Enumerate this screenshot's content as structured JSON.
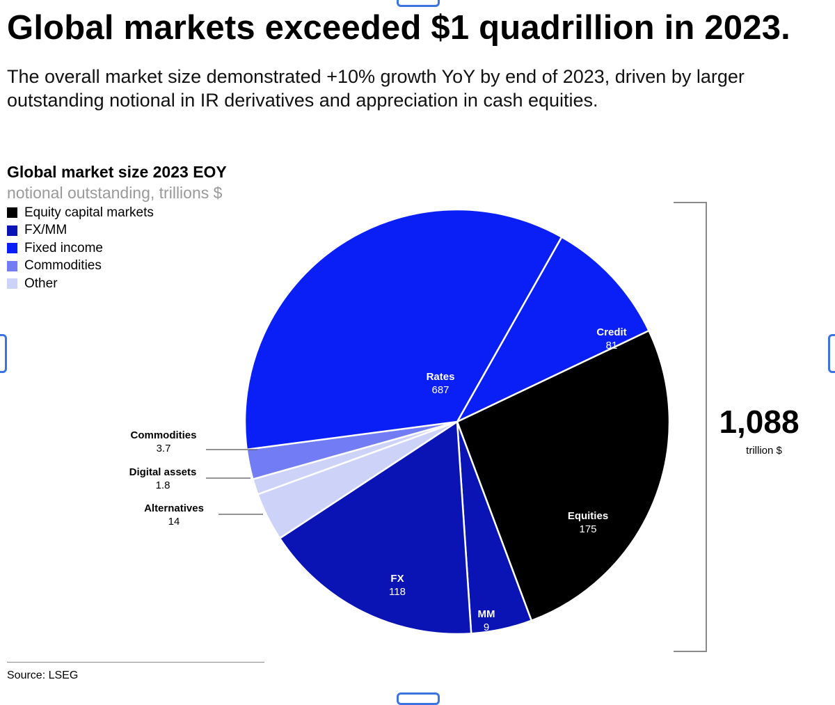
{
  "headline": "Global markets exceeded $1 quadrillion in 2023.",
  "subhead": "The overall market size demonstrated +10% growth YoY by end of 2023, driven by larger outstanding notional in IR derivatives and appreciation in cash equities.",
  "source": "Source: LSEG",
  "chart_data": {
    "type": "pie",
    "title": "Global market size 2023 EOY",
    "subtitle": "notional outstanding, trillions $",
    "legend": [
      {
        "label": "Equity capital markets",
        "color": "#000000"
      },
      {
        "label": "FX/MM",
        "color": "#0a14b4"
      },
      {
        "label": "Fixed income",
        "color": "#0a1ff5"
      },
      {
        "label": "Commodities",
        "color": "#727df5"
      },
      {
        "label": "Other",
        "color": "#cdd2f8"
      }
    ],
    "slices": [
      {
        "label": "Credit",
        "value": "81",
        "group": "Fixed income",
        "color": "#0a1ff5",
        "label_color": "#ffffff",
        "start_deg": 29.5,
        "end_deg": 64.6
      },
      {
        "label": "Equities",
        "value": "175",
        "group": "Equity capital markets",
        "color": "#000000",
        "label_color": "#ffffff",
        "start_deg": 64.6,
        "end_deg": 159.5
      },
      {
        "label": "MM",
        "value": "9",
        "group": "FX/MM",
        "color": "#0a14b4",
        "label_color": "#ffffff",
        "start_deg": 159.5,
        "end_deg": 176.2
      },
      {
        "label": "FX",
        "value": "118",
        "group": "FX/MM",
        "color": "#0a14b4",
        "label_color": "#ffffff",
        "start_deg": 176.2,
        "end_deg": 236.7
      },
      {
        "label": "Alternatives",
        "value": "14",
        "group": "Other",
        "color": "#cdd2f8",
        "label_color": "#000000",
        "external": true,
        "start_deg": 236.7,
        "end_deg": 250.0
      },
      {
        "label": "Digital assets",
        "value": "1.8",
        "group": "Other",
        "color": "#cdd2f8",
        "label_color": "#000000",
        "external": true,
        "start_deg": 250.0,
        "end_deg": 254.3
      },
      {
        "label": "Commodities",
        "value": "3.7",
        "group": "Commodities",
        "color": "#727df5",
        "label_color": "#000000",
        "external": true,
        "start_deg": 254.3,
        "end_deg": 262.5
      },
      {
        "label": "Rates",
        "value": "687",
        "group": "Fixed income",
        "color": "#0a1ff5",
        "label_color": "#ffffff",
        "start_deg": 262.5,
        "end_deg": 389.5
      }
    ],
    "total": {
      "value": "1,088",
      "unit": "trillion $"
    }
  }
}
